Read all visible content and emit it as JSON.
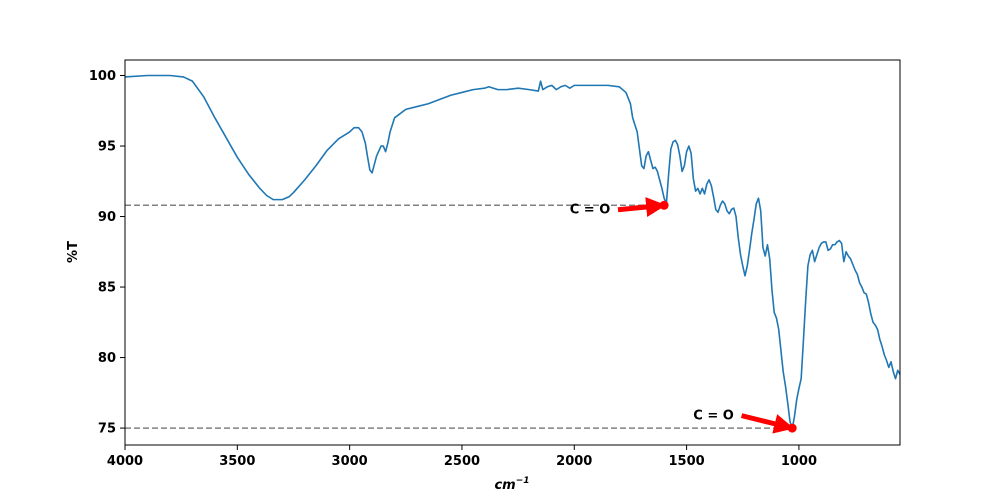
{
  "chart_data": {
    "type": "line",
    "xlabel": "cm",
    "xlabel_superscript": "−1",
    "ylabel": "%T",
    "xlim": [
      4000,
      550
    ],
    "ylim": [
      73.8,
      101.1
    ],
    "x_ticks": [
      4000,
      3500,
      3000,
      2500,
      2000,
      1500,
      1000
    ],
    "y_ticks": [
      75,
      80,
      85,
      90,
      95,
      100
    ],
    "grid": false,
    "line_color": "#1f77b4",
    "series": [
      {
        "x": [
          4000,
          3900,
          3800,
          3740,
          3700,
          3650,
          3600,
          3550,
          3500,
          3450,
          3400,
          3370,
          3340,
          3300,
          3270,
          3250,
          3200,
          3150,
          3100,
          3050,
          3000,
          2980,
          2960,
          2945,
          2930,
          2920,
          2910,
          2900,
          2880,
          2860,
          2850,
          2840,
          2830,
          2820,
          2800,
          2750,
          2700,
          2650,
          2600,
          2550,
          2500,
          2450,
          2400,
          2380,
          2360,
          2340,
          2300,
          2250,
          2200,
          2160,
          2150,
          2140,
          2120,
          2100,
          2080,
          2060,
          2040,
          2020,
          2000,
          1980,
          1950,
          1900,
          1850,
          1800,
          1770,
          1750,
          1740,
          1720,
          1710,
          1700,
          1690,
          1680,
          1670,
          1660,
          1650,
          1640,
          1630,
          1620,
          1610,
          1600,
          1590,
          1580,
          1570,
          1560,
          1550,
          1540,
          1530,
          1520,
          1510,
          1500,
          1490,
          1480,
          1470,
          1460,
          1450,
          1440,
          1430,
          1420,
          1410,
          1400,
          1390,
          1380,
          1370,
          1360,
          1350,
          1340,
          1330,
          1320,
          1310,
          1300,
          1290,
          1280,
          1270,
          1260,
          1250,
          1240,
          1230,
          1220,
          1210,
          1200,
          1190,
          1180,
          1170,
          1160,
          1150,
          1140,
          1130,
          1120,
          1110,
          1100,
          1090,
          1080,
          1070,
          1060,
          1050,
          1040,
          1030,
          1020,
          1010,
          1000,
          990,
          980,
          970,
          960,
          950,
          940,
          930,
          920,
          910,
          900,
          890,
          880,
          870,
          860,
          850,
          840,
          830,
          820,
          810,
          800,
          790,
          780,
          770,
          760,
          750,
          740,
          730,
          720,
          710,
          700,
          690,
          680,
          670,
          660,
          650,
          640,
          630,
          620,
          610,
          600,
          590,
          580,
          570,
          560,
          550
        ],
        "y": [
          99.9,
          100.0,
          100.0,
          99.9,
          99.6,
          98.5,
          97.0,
          95.6,
          94.2,
          93.0,
          92.0,
          91.5,
          91.2,
          91.2,
          91.4,
          91.7,
          92.6,
          93.6,
          94.7,
          95.5,
          96.0,
          96.3,
          96.3,
          96.0,
          95.2,
          94.2,
          93.3,
          93.1,
          94.3,
          95.0,
          95.0,
          94.6,
          95.2,
          96.0,
          97.0,
          97.6,
          97.8,
          98.0,
          98.3,
          98.6,
          98.8,
          99.0,
          99.1,
          99.2,
          99.1,
          99.0,
          99.0,
          99.1,
          99.0,
          98.9,
          99.6,
          99.0,
          99.2,
          99.3,
          99.0,
          99.2,
          99.3,
          99.1,
          99.3,
          99.3,
          99.3,
          99.3,
          99.3,
          99.2,
          98.8,
          98.0,
          97.0,
          96.0,
          94.8,
          93.6,
          93.4,
          94.3,
          94.6,
          94.0,
          93.4,
          93.5,
          93.2,
          92.6,
          92.0,
          91.3,
          90.9,
          93.0,
          94.8,
          95.3,
          95.4,
          95.1,
          94.3,
          93.2,
          93.6,
          94.6,
          95.0,
          94.5,
          92.7,
          91.8,
          92.0,
          91.6,
          92.0,
          91.6,
          92.3,
          92.6,
          92.2,
          91.4,
          90.5,
          90.3,
          90.8,
          91.1,
          90.9,
          90.4,
          90.2,
          90.5,
          90.6,
          90.0,
          88.5,
          87.3,
          86.5,
          85.8,
          86.5,
          87.6,
          88.8,
          89.8,
          90.9,
          91.3,
          90.4,
          87.8,
          87.2,
          88.0,
          87.0,
          84.8,
          83.2,
          82.8,
          82.0,
          80.5,
          79.0,
          78.0,
          76.8,
          75.5,
          74.9,
          75.8,
          77.0,
          77.8,
          78.5,
          81.2,
          84.0,
          86.5,
          87.3,
          87.6,
          86.8,
          87.3,
          87.8,
          88.1,
          88.2,
          88.2,
          87.6,
          87.7,
          88.0,
          88.0,
          88.2,
          88.3,
          88.1,
          86.8,
          87.5,
          87.2,
          87.0,
          86.6,
          86.2,
          85.9,
          85.3,
          85.0,
          84.6,
          84.5,
          83.9,
          83.1,
          82.5,
          82.3,
          82.0,
          81.3,
          80.8,
          80.2,
          79.8,
          79.3,
          79.7,
          79.0,
          78.5,
          79.1,
          78.8
        ]
      }
    ],
    "reference_lines": [
      {
        "y": 90.8,
        "x_from": 4000,
        "x_to": 1600,
        "color": "#808080",
        "style": "dashed"
      },
      {
        "y": 75.0,
        "x_from": 4000,
        "x_to": 1030,
        "color": "#808080",
        "style": "dashed"
      }
    ],
    "annotations": [
      {
        "text": "C = O",
        "point_x": 1600,
        "point_y": 90.8,
        "text_x": 1930,
        "text_y": 90.2,
        "color": "#ff0000"
      },
      {
        "text": "C = O",
        "point_x": 1030,
        "point_y": 75.0,
        "text_x": 1380,
        "text_y": 75.6,
        "color": "#ff0000"
      }
    ]
  }
}
